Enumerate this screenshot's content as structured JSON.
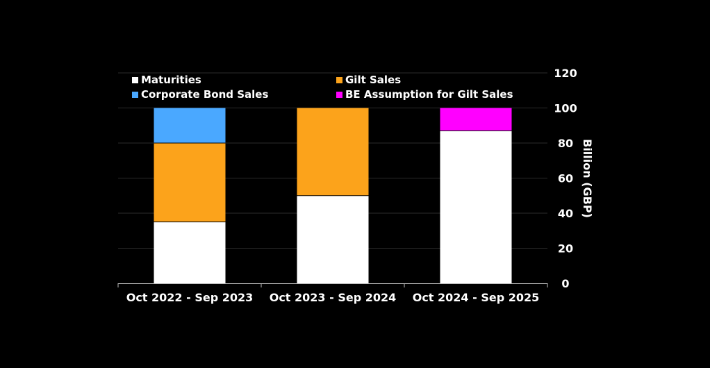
{
  "chart_data": {
    "type": "bar",
    "stacked": true,
    "categories": [
      "Oct 2022 - Sep 2023",
      "Oct 2023 - Sep 2024",
      "Oct 2024 - Sep 2025"
    ],
    "series": [
      {
        "name": "Maturities",
        "color": "#ffffff",
        "values": [
          35,
          50,
          87
        ]
      },
      {
        "name": "Gilt Sales",
        "color": "#fca31b",
        "values": [
          45,
          50,
          0
        ]
      },
      {
        "name": "Corporate Bond Sales",
        "color": "#4aa8ff",
        "values": [
          20,
          0,
          0
        ]
      },
      {
        "name": "BE Assumption for Gilt Sales",
        "color": "#ff00ff",
        "values": [
          0,
          0,
          13
        ]
      }
    ],
    "ylabel": "Billion (GBP)",
    "ylim": [
      0,
      120
    ],
    "yticks": [
      "0",
      "20",
      "40",
      "60",
      "80",
      "100",
      "120"
    ],
    "y_axis_side": "right",
    "grid": true,
    "legend_position": "top"
  }
}
